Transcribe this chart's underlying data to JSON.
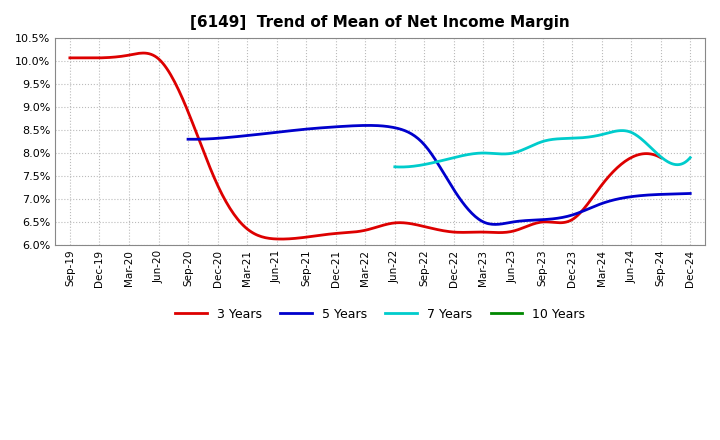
{
  "title": "[6149]  Trend of Mean of Net Income Margin",
  "ylim": [
    0.06,
    0.105
  ],
  "yticks": [
    0.06,
    0.065,
    0.07,
    0.075,
    0.08,
    0.085,
    0.09,
    0.095,
    0.1,
    0.105
  ],
  "x_labels": [
    "Sep-19",
    "Dec-19",
    "Mar-20",
    "Jun-20",
    "Sep-20",
    "Dec-20",
    "Mar-21",
    "Jun-21",
    "Sep-21",
    "Dec-21",
    "Mar-22",
    "Jun-22",
    "Sep-22",
    "Dec-22",
    "Mar-23",
    "Jun-23",
    "Sep-23",
    "Dec-23",
    "Mar-24",
    "Jun-24",
    "Sep-24",
    "Dec-24"
  ],
  "series": {
    "3 Years": {
      "color": "#dd0000",
      "data_x": [
        0,
        1,
        2,
        3,
        4,
        5,
        6,
        7,
        8,
        9,
        10,
        11,
        12,
        13,
        14,
        15,
        16,
        17,
        18,
        19,
        20
      ],
      "data_y": [
        0.1007,
        0.1007,
        0.1013,
        0.1005,
        0.089,
        0.073,
        0.0635,
        0.0613,
        0.0617,
        0.0625,
        0.0632,
        0.0648,
        0.064,
        0.0628,
        0.0628,
        0.063,
        0.065,
        0.0655,
        0.073,
        0.079,
        0.079
      ]
    },
    "5 Years": {
      "color": "#0000cc",
      "data_x": [
        4,
        5,
        6,
        7,
        8,
        9,
        10,
        11,
        12,
        13,
        14,
        15,
        16,
        17,
        18,
        19,
        20,
        21
      ],
      "data_y": [
        0.083,
        0.0832,
        0.0838,
        0.0845,
        0.0852,
        0.0857,
        0.086,
        0.0855,
        0.0818,
        0.072,
        0.065,
        0.065,
        0.0655,
        0.0665,
        0.069,
        0.0705,
        0.071,
        0.0712
      ]
    },
    "7 Years": {
      "color": "#00cccc",
      "data_x": [
        11,
        12,
        13,
        14,
        15,
        16,
        17,
        18,
        19,
        20,
        21
      ],
      "data_y": [
        0.077,
        0.0775,
        0.079,
        0.08,
        0.08,
        0.0825,
        0.0832,
        0.084,
        0.0845,
        0.0792,
        0.079
      ]
    },
    "10 Years": {
      "color": "#008800",
      "data_x": [],
      "data_y": []
    }
  },
  "legend_entries": [
    "3 Years",
    "5 Years",
    "7 Years",
    "10 Years"
  ],
  "legend_colors": [
    "#dd0000",
    "#0000cc",
    "#00cccc",
    "#008800"
  ],
  "background_color": "#ffffff",
  "grid_color": "#bbbbbb"
}
